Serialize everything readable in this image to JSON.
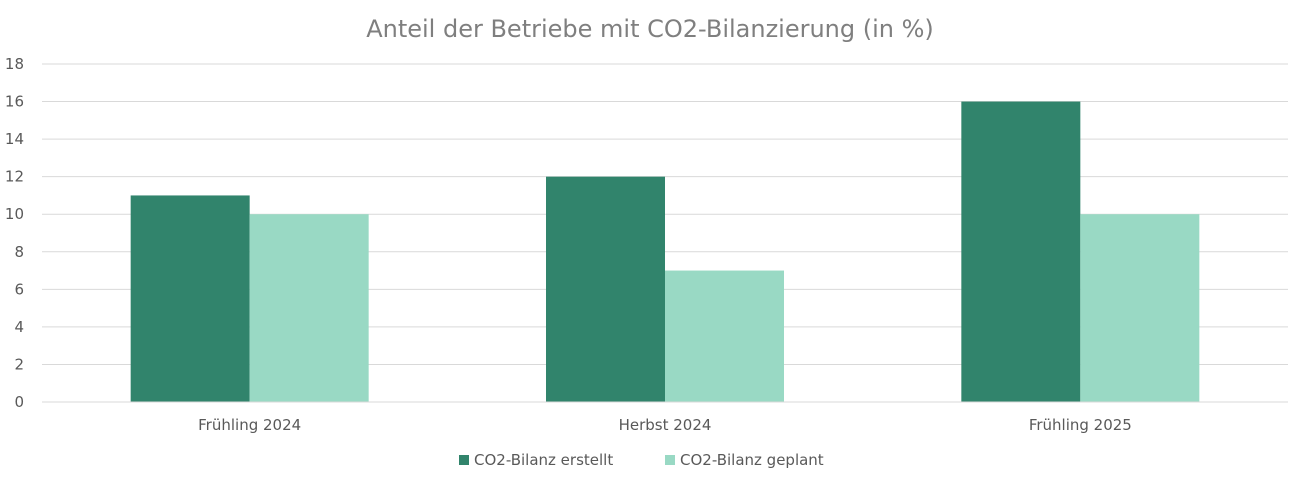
{
  "chart_data": {
    "type": "bar",
    "title": "Anteil der Betriebe mit CO2-Bilanzierung (in %)",
    "xlabel": "",
    "ylabel": "",
    "categories": [
      "Frühling 2024",
      "Herbst 2024",
      "Frühling 2025"
    ],
    "series": [
      {
        "name": "CO2-Bilanz erstellt",
        "values": [
          11,
          12,
          16
        ],
        "color": "#31846c"
      },
      {
        "name": "CO2-Bilanz geplant",
        "values": [
          10,
          7,
          10
        ],
        "color": "#99d9c4"
      }
    ],
    "ylim": [
      0,
      18
    ],
    "yticks": [
      0,
      2,
      4,
      6,
      8,
      10,
      12,
      14,
      16,
      18
    ],
    "grid": true,
    "legend": "bottom"
  }
}
